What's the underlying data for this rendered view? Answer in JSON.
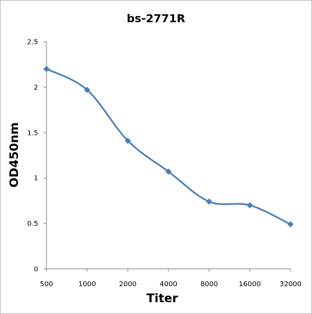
{
  "chart_data": {
    "type": "line",
    "title": "bs-2771R",
    "xlabel": "Titer",
    "ylabel": "OD450nm",
    "categories": [
      "500",
      "1000",
      "2000",
      "4000",
      "8000",
      "16000",
      "32000"
    ],
    "values": [
      2.2,
      1.97,
      1.41,
      1.07,
      0.74,
      0.7,
      0.49
    ],
    "ylim": [
      0,
      2.5
    ],
    "yticks": [
      "0",
      "0.5",
      "1",
      "1.5",
      "2",
      "2.5"
    ],
    "line_color": "#4a7ebb",
    "smooth": true,
    "grid": false,
    "legend": "none"
  }
}
